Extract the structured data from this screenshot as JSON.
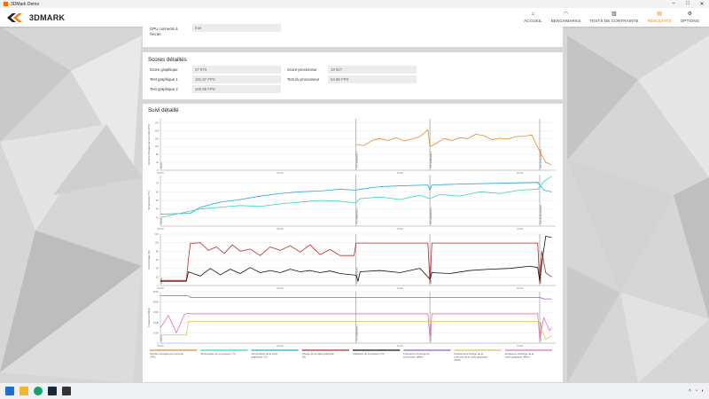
{
  "window": {
    "title": "3DMark Demo",
    "controls": [
      "–",
      "□",
      "✕"
    ]
  },
  "app": {
    "logo": "3DMARK",
    "nav": [
      {
        "label": "ACCUEIL",
        "icon": "home-icon",
        "glyph": "⌂",
        "active": false
      },
      {
        "label": "BENCHMARKS",
        "icon": "gauge-icon",
        "glyph": "◠",
        "active": false
      },
      {
        "label": "TESTS DE CONTRAINTE",
        "icon": "bars-icon",
        "glyph": "▥",
        "active": false
      },
      {
        "label": "RÉSULTATS",
        "icon": "chart-icon",
        "glyph": "▤",
        "active": true
      },
      {
        "label": "OPTIONS",
        "icon": "gear-icon",
        "glyph": "⚙",
        "active": false
      }
    ],
    "accent": "#e9831e"
  },
  "gpu": {
    "label_line1": "GPU connecté à",
    "label_line2": "l'écran",
    "value": "true"
  },
  "scores": {
    "title": "Scores détaillés",
    "rows_left": [
      {
        "label": "Score graphique",
        "value": "27 970"
      },
      {
        "label": "Test graphique 1",
        "value": "181.67 FPS"
      },
      {
        "label": "Test graphique 2",
        "value": "160.85 FPS"
      }
    ],
    "rows_right": [
      {
        "label": "Score processeur",
        "value": "18 917"
      },
      {
        "label": "Test du processeur",
        "value": "63.55 FPS"
      }
    ]
  },
  "tracking": {
    "title": "Suivi détaillé",
    "phase_labels": [
      "Démo",
      "Test graphique 1",
      "Test graphique 2",
      "Test du processeur"
    ],
    "time_ticks": [
      "00:00",
      "00:30",
      "01:00",
      "01:30"
    ],
    "legend": [
      {
        "label": "Nombre d'images par seconde (IPS)",
        "color": "#e8892a"
      },
      {
        "label": "Température du processeur (°C)",
        "color": "#35d6b4"
      },
      {
        "label": "Température de la carte graphique (°C)",
        "color": "#2aa5e0"
      },
      {
        "label": "Charge de la carte graphique (%)",
        "color": "#b52a2a"
      },
      {
        "label": "Utilisation du processeur (%)",
        "color": "#111111"
      },
      {
        "label": "Fréquence d'horloge du processeur (MHz)",
        "color": "#9b59d0"
      },
      {
        "label": "Fréquence d'horloge de la mémoire de la carte graphique (MHz)",
        "color": "#e0c050"
      },
      {
        "label": "Fréquence d'horloge de la carte graphique (MHz)",
        "color": "#e070c0"
      }
    ]
  },
  "chart_data": {
    "type": "line",
    "xlabel": "",
    "x_unit": "seconds",
    "phase_boundaries": [
      0,
      98,
      135,
      190
    ],
    "panels": [
      {
        "ylabel": "Nombre d'images par seconde (IPS)",
        "ylim": [
          0,
          260
        ],
        "yticks": [
          0,
          40,
          80,
          120,
          160,
          200,
          240
        ],
        "series": [
          {
            "name": "Nombre d'images par seconde (IPS)",
            "color": "#e8892a",
            "points": [
              [
                98,
                130
              ],
              [
                102,
                125
              ],
              [
                106,
                150
              ],
              [
                110,
                160
              ],
              [
                114,
                150
              ],
              [
                118,
                165
              ],
              [
                122,
                148
              ],
              [
                126,
                158
              ],
              [
                130,
                170
              ],
              [
                134,
                205
              ],
              [
                135,
                120
              ],
              [
                138,
                135
              ],
              [
                142,
                160
              ],
              [
                146,
                150
              ],
              [
                150,
                165
              ],
              [
                154,
                160
              ],
              [
                158,
                182
              ],
              [
                162,
                175
              ],
              [
                166,
                155
              ],
              [
                170,
                162
              ],
              [
                174,
                158
              ],
              [
                178,
                170
              ],
              [
                182,
                172
              ],
              [
                186,
                178
              ],
              [
                190,
                95
              ],
              [
                193,
                40
              ],
              [
                196,
                28
              ]
            ]
          }
        ]
      },
      {
        "ylabel": "Température (°C)",
        "ylim": [
          20,
          80
        ],
        "yticks": [
          30,
          40,
          50,
          60,
          70
        ],
        "series": [
          {
            "name": "Température de la carte graphique (°C)",
            "color": "#2aa5e0",
            "points": [
              [
                0,
                34
              ],
              [
                15,
                35
              ],
              [
                20,
                42
              ],
              [
                30,
                48
              ],
              [
                40,
                51
              ],
              [
                50,
                55
              ],
              [
                60,
                58
              ],
              [
                70,
                60
              ],
              [
                80,
                61
              ],
              [
                90,
                63
              ],
              [
                98,
                62
              ],
              [
                100,
                63
              ],
              [
                110,
                66
              ],
              [
                120,
                67
              ],
              [
                134,
                68
              ],
              [
                135,
                62
              ],
              [
                136,
                68
              ],
              [
                150,
                69
              ],
              [
                170,
                70
              ],
              [
                189,
                71
              ],
              [
                192,
                62
              ],
              [
                196,
                60
              ]
            ]
          },
          {
            "name": "Température du processeur (°C)",
            "color": "#35d6b4",
            "points": [
              [
                0,
                30
              ],
              [
                10,
                35
              ],
              [
                20,
                40
              ],
              [
                30,
                42
              ],
              [
                40,
                44
              ],
              [
                50,
                43
              ],
              [
                60,
                46
              ],
              [
                70,
                48
              ],
              [
                80,
                50
              ],
              [
                90,
                49
              ],
              [
                98,
                47
              ],
              [
                100,
                52
              ],
              [
                110,
                54
              ],
              [
                120,
                51
              ],
              [
                130,
                56
              ],
              [
                135,
                52
              ],
              [
                140,
                57
              ],
              [
                150,
                55
              ],
              [
                160,
                60
              ],
              [
                170,
                58
              ],
              [
                180,
                62
              ],
              [
                189,
                63
              ],
              [
                192,
                72
              ],
              [
                196,
                78
              ]
            ]
          }
        ]
      },
      {
        "ylabel": "Pourcentage (%)",
        "ylim": [
          0,
          120
        ],
        "yticks": [
          0,
          20,
          40,
          60,
          80,
          100,
          120
        ],
        "series": [
          {
            "name": "Charge de la carte graphique (%)",
            "color": "#b52a2a",
            "points": [
              [
                0,
                12
              ],
              [
                10,
                12
              ],
              [
                13,
                12
              ],
              [
                14,
                60
              ],
              [
                15,
                98
              ],
              [
                20,
                100
              ],
              [
                24,
                82
              ],
              [
                28,
                90
              ],
              [
                32,
                75
              ],
              [
                36,
                95
              ],
              [
                40,
                80
              ],
              [
                45,
                85
              ],
              [
                50,
                70
              ],
              [
                55,
                90
              ],
              [
                60,
                82
              ],
              [
                65,
                93
              ],
              [
                70,
                78
              ],
              [
                75,
                95
              ],
              [
                80,
                72
              ],
              [
                85,
                84
              ],
              [
                90,
                70
              ],
              [
                97,
                70
              ],
              [
                98,
                99
              ],
              [
                134,
                99
              ],
              [
                135,
                5
              ],
              [
                136,
                99
              ],
              [
                189,
                99
              ],
              [
                190,
                5
              ],
              [
                191,
                80
              ],
              [
                193,
                30
              ],
              [
                196,
                20
              ]
            ]
          },
          {
            "name": "Utilisation du processeur (%)",
            "color": "#111111",
            "points": [
              [
                0,
                10
              ],
              [
                13,
                10
              ],
              [
                14,
                32
              ],
              [
                20,
                22
              ],
              [
                25,
                40
              ],
              [
                30,
                25
              ],
              [
                35,
                38
              ],
              [
                40,
                28
              ],
              [
                45,
                42
              ],
              [
                50,
                30
              ],
              [
                55,
                35
              ],
              [
                60,
                30
              ],
              [
                65,
                38
              ],
              [
                70,
                32
              ],
              [
                75,
                35
              ],
              [
                80,
                30
              ],
              [
                85,
                34
              ],
              [
                90,
                28
              ],
              [
                98,
                24
              ],
              [
                99,
                10
              ],
              [
                100,
                32
              ],
              [
                110,
                35
              ],
              [
                120,
                30
              ],
              [
                130,
                40
              ],
              [
                135,
                15
              ],
              [
                136,
                30
              ],
              [
                145,
                28
              ],
              [
                155,
                35
              ],
              [
                165,
                38
              ],
              [
                175,
                40
              ],
              [
                185,
                45
              ],
              [
                189,
                42
              ],
              [
                190,
                10
              ],
              [
                191,
                50
              ],
              [
                193,
                115
              ],
              [
                196,
                112
              ]
            ]
          }
        ]
      },
      {
        "ylabel": "Fréquence (MHz)",
        "ylim": [
          0,
          5000
        ],
        "yticks": [
          0,
          1000,
          2000,
          3000,
          4000,
          5000
        ],
        "series": [
          {
            "name": "Fréquence d'horloge du processeur (MHz)",
            "color": "#9b59d0",
            "points": [
              [
                0,
                4600
              ],
              [
                14,
                4600
              ],
              [
                15,
                4450
              ],
              [
                98,
                4450
              ],
              [
                134,
                4450
              ],
              [
                190,
                4450
              ],
              [
                192,
                4300
              ],
              [
                196,
                4300
              ]
            ]
          },
          {
            "name": "Fréquence d'horloge de la carte graphique (MHz)",
            "color": "#e070c0",
            "points": [
              [
                0,
                1500
              ],
              [
                4,
                2700
              ],
              [
                8,
                1000
              ],
              [
                12,
                2800
              ],
              [
                14,
                2900
              ],
              [
                15,
                2850
              ],
              [
                98,
                2850
              ],
              [
                134,
                2850
              ],
              [
                135,
                500
              ],
              [
                136,
                2850
              ],
              [
                189,
                2850
              ],
              [
                190,
                400
              ],
              [
                192,
                2500
              ],
              [
                195,
                1200
              ],
              [
                196,
                1500
              ]
            ]
          },
          {
            "name": "Fréquence d'horloge de la mémoire de la carte graphique (MHz)",
            "color": "#e0c050",
            "points": [
              [
                0,
                800
              ],
              [
                13,
                800
              ],
              [
                14,
                2100
              ],
              [
                98,
                2100
              ],
              [
                134,
                2100
              ],
              [
                189,
                2100
              ],
              [
                190,
                1800
              ],
              [
                193,
                400
              ],
              [
                196,
                700
              ]
            ]
          }
        ]
      }
    ]
  }
}
